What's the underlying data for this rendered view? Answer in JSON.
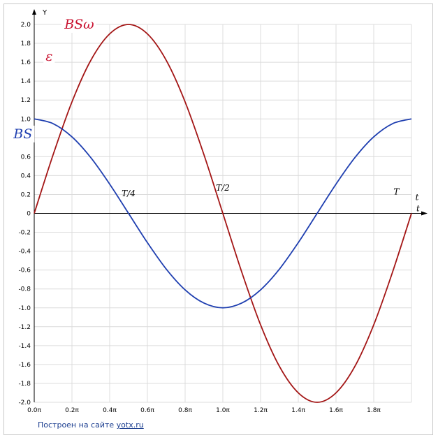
{
  "chart_data": {
    "type": "line",
    "xlabel": "t",
    "ylabel": "Y",
    "xlim": [
      0,
      2
    ],
    "ylim": [
      -2,
      2
    ],
    "x_unit_suffix": "π",
    "x_ticks": [
      "0.0π",
      "0.2π",
      "0.4π",
      "0.6π",
      "0.8π",
      "1.0π",
      "1.2π",
      "1.4π",
      "1.6π",
      "1.8π"
    ],
    "y_ticks": [
      "2.0",
      "1.8",
      "1.6",
      "1.4",
      "1.2",
      "1.0",
      "0.8",
      "0.6",
      "0.4",
      "0.2",
      "0",
      "-0.2",
      "-0.4",
      "-0.6",
      "-0.8",
      "-1.0",
      "-1.2",
      "-1.4",
      "-1.6",
      "-1.8",
      "-2.0"
    ],
    "grid": true,
    "series": [
      {
        "color": "#a31515",
        "x": [
          0,
          0.1,
          0.2,
          0.3,
          0.4,
          0.5,
          0.6,
          0.7,
          0.8,
          0.9,
          1.0,
          1.1,
          1.2,
          1.3,
          1.4,
          1.5,
          1.6,
          1.7,
          1.8,
          1.9,
          2.0
        ],
        "y": [
          0,
          0.62,
          1.18,
          1.62,
          1.9,
          2.0,
          1.9,
          1.62,
          1.18,
          0.62,
          0,
          -0.62,
          -1.18,
          -1.62,
          -1.9,
          -2.0,
          -1.9,
          -1.62,
          -1.18,
          -0.62,
          0
        ]
      },
      {
        "color": "#1f3fb0",
        "x": [
          0,
          0.1,
          0.2,
          0.3,
          0.4,
          0.5,
          0.6,
          0.7,
          0.8,
          0.9,
          1.0,
          1.1,
          1.2,
          1.3,
          1.4,
          1.5,
          1.6,
          1.7,
          1.8,
          1.9,
          2.0
        ],
        "y": [
          1.0,
          0.95,
          0.81,
          0.59,
          0.31,
          0,
          -0.31,
          -0.59,
          -0.81,
          -0.95,
          -1.0,
          -0.95,
          -0.81,
          -0.59,
          -0.31,
          0,
          0.31,
          0.59,
          0.81,
          0.95,
          1.0
        ]
      }
    ],
    "annotations": [
      {
        "text": "T/4",
        "x": 0.5,
        "y": 0.18,
        "style": "small"
      },
      {
        "text": "T/2",
        "x": 1.0,
        "y": 0.24,
        "style": "small"
      },
      {
        "text": "T",
        "x": 1.92,
        "y": 0.2,
        "style": "small"
      },
      {
        "text": "t",
        "x": 2.03,
        "y": 0.14,
        "style": "small"
      },
      {
        "text": "BSω",
        "x": 0.16,
        "y": 2.0,
        "style": "big",
        "color": "#c8102e"
      },
      {
        "text": "ε",
        "x": 0.06,
        "y": 1.66,
        "style": "big",
        "color": "#c8102e"
      },
      {
        "text": "BS",
        "x": -0.11,
        "y": 0.84,
        "style": "big",
        "color": "#1f3fb0"
      }
    ]
  },
  "footer": {
    "text": "Построен на сайте ",
    "link": "yotx.ru"
  }
}
